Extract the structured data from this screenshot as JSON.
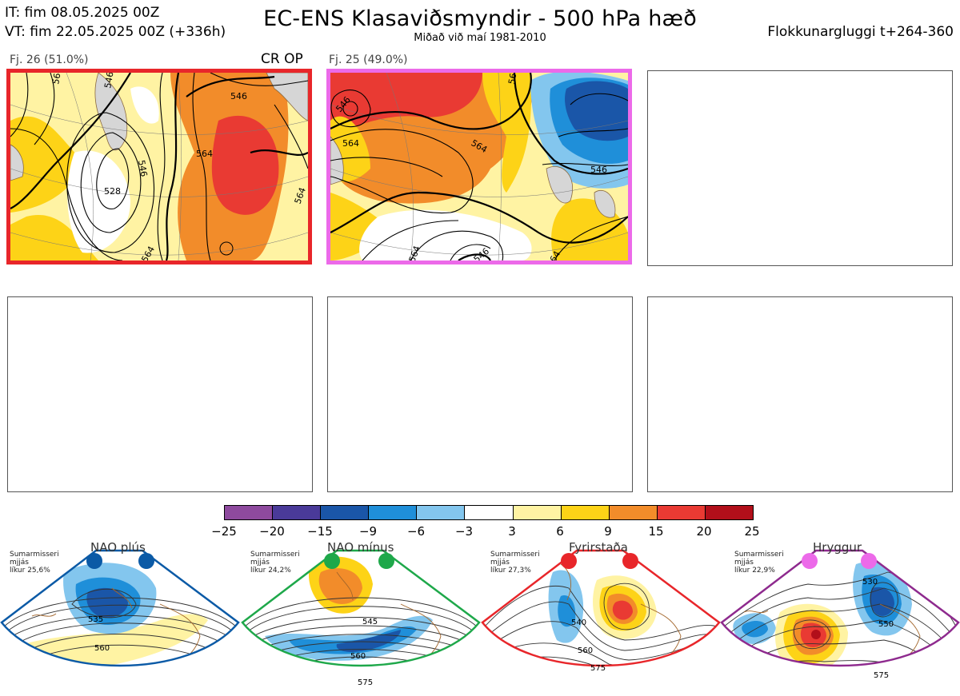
{
  "header": {
    "it_line": "IT: fim 08.05.2025 00Z",
    "vt_line": "VT: fim 22.05.2025 00Z  (+336h)",
    "title": "EC-ENS Klasaviðsmyndir - 500 hPa hæð",
    "subtitle": "Miðað við maí 1981-2010",
    "window_label": "Flokkunargluggi t+264-360"
  },
  "clusters": [
    {
      "label": "Fj. 26 (51.0%)",
      "members_tag": "CR OP",
      "border_color": "#e8262a",
      "contour_labels": [
        "564",
        "546",
        "546",
        "564",
        "528",
        "564",
        "546",
        "564"
      ]
    },
    {
      "label": "Fj. 25 (49.0%)",
      "border_color": "#ec6ae9",
      "contour_labels": [
        "546",
        "564",
        "564",
        "546",
        "564",
        "546",
        "564",
        "564"
      ]
    }
  ],
  "colorbar": {
    "ticks": [
      "−25",
      "−20",
      "−15",
      "−9",
      "−6",
      "−3",
      "3",
      "6",
      "9",
      "15",
      "20",
      "25"
    ],
    "colors": [
      "#8e4a9e",
      "#4a3a99",
      "#1a56a8",
      "#1f8fd9",
      "#83c6ee",
      "#ffffff",
      "#fff3a3",
      "#fdd317",
      "#f28c2a",
      "#e93a33",
      "#b20f1a"
    ]
  },
  "regimes": [
    {
      "title": "NAO plús",
      "season": "Sumarmisseri",
      "smoothing": "mjjás",
      "probability": "líkur 25,6%",
      "color": "#0b5aa6",
      "contour_labels": [
        "535",
        "560"
      ]
    },
    {
      "title": "NAO mínus",
      "season": "Sumarmisseri",
      "smoothing": "mjjás",
      "probability": "líkur 24,2%",
      "color": "#1ea84a",
      "contour_labels": [
        "545",
        "560",
        "575"
      ]
    },
    {
      "title": "Fyrirstaða",
      "season": "Sumarmisseri",
      "smoothing": "mjjás",
      "probability": "líkur 27,3%",
      "color": "#e8262a",
      "contour_labels": [
        "540",
        "560",
        "575"
      ]
    },
    {
      "title": "Hryggur",
      "season": "Sumarmisseri",
      "smoothing": "mjjás",
      "probability": "líkur 22,9%",
      "color": "#8e2a8e",
      "contour_labels": [
        "530",
        "550",
        "575"
      ]
    }
  ]
}
